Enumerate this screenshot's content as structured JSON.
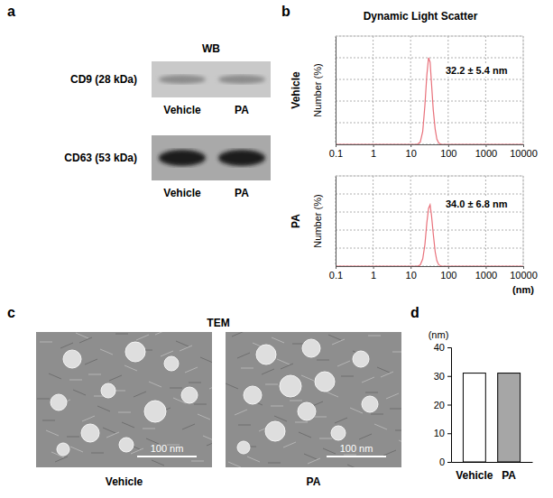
{
  "panel_labels": [
    "a",
    "b",
    "c",
    "d"
  ],
  "western_blot": {
    "title": "WB",
    "blots": [
      {
        "label": "CD9 (28 kDa)",
        "lanes": [
          "Vehicle",
          "PA"
        ]
      },
      {
        "label": "CD63 (53 kDa)",
        "lanes": [
          "Vehicle",
          "PA"
        ]
      }
    ]
  },
  "tem": {
    "title": "TEM",
    "images": [
      {
        "label": "Vehicle",
        "scale_bar": "100 nm"
      },
      {
        "label": "PA",
        "scale_bar": "100 nm"
      }
    ]
  },
  "chart_data": [
    {
      "type": "line",
      "title": "Dynamic Light Scatter",
      "row_label": "Vehicle",
      "ylabel": "Number (%)",
      "annotation": "32.2 ± 5.4 nm",
      "x": [
        0.1,
        15,
        18,
        21,
        24,
        27,
        30,
        33,
        36,
        40,
        45,
        50,
        56,
        65,
        10000
      ],
      "values": [
        0,
        0,
        0.5,
        3,
        9,
        16,
        20,
        19,
        14,
        8,
        3.5,
        1.2,
        0.3,
        0,
        0
      ],
      "color": "#e8707a",
      "log": "x",
      "grid": true,
      "tick_labels": "x",
      "xlim": [
        0.1,
        10000
      ],
      "xticks": [
        0.1,
        1,
        10,
        100,
        1000,
        10000
      ],
      "ylim": [
        0,
        25
      ],
      "yticks": [
        0,
        5,
        10,
        15,
        20,
        25
      ]
    },
    {
      "type": "line",
      "row_label": "PA",
      "ylabel": "Number (%)",
      "xlabel": "(nm)",
      "annotation": "34.0 ± 6.8 nm",
      "x": [
        0.1,
        15,
        18,
        21,
        24,
        27,
        30,
        33,
        36,
        40,
        45,
        50,
        56,
        65,
        10000
      ],
      "values": [
        0,
        0,
        0.3,
        2,
        6,
        12,
        16,
        17,
        14,
        9,
        4,
        1.5,
        0.4,
        0,
        0
      ],
      "color": "#e8707a",
      "log": "x",
      "grid": true,
      "tick_labels": "x",
      "xlim": [
        0.1,
        10000
      ],
      "xticks": [
        0.1,
        1,
        10,
        100,
        1000,
        10000
      ],
      "ylim": [
        0,
        25
      ],
      "yticks": [
        0,
        5,
        10,
        15,
        20,
        25
      ]
    },
    {
      "type": "bar",
      "ylabel": "(nm)",
      "categories": [
        "Vehicle",
        "PA"
      ],
      "values": [
        31,
        31
      ],
      "colors": [
        "#ffffff",
        "#a6a6a6"
      ],
      "ylim": [
        0,
        40
      ],
      "yticks": [
        0,
        10,
        20,
        30,
        40
      ]
    }
  ]
}
